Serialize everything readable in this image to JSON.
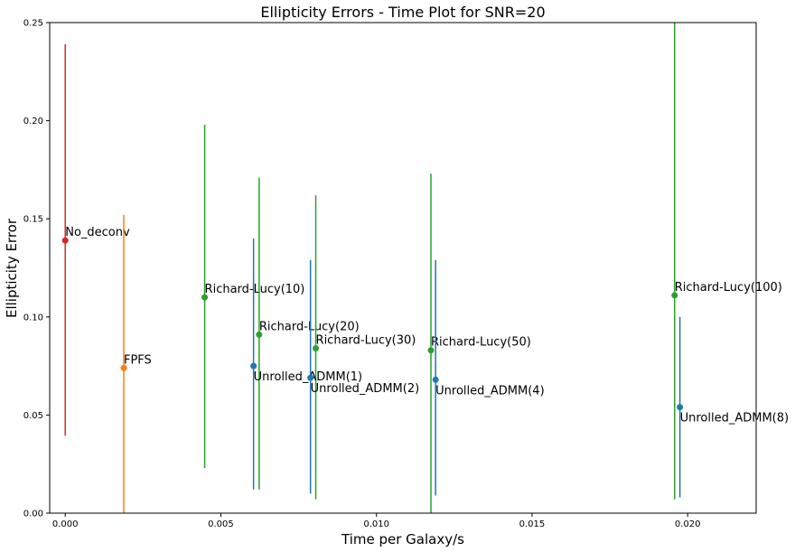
{
  "chart_data": {
    "type": "scatter",
    "title": "Ellipticity Errors - Time Plot for SNR=20",
    "xlabel": "Time per Galaxy/s",
    "ylabel": "Ellipticity Error",
    "xlim": [
      -0.0005,
      0.0222
    ],
    "ylim": [
      0.0,
      0.25
    ],
    "xticks": [
      "0.000",
      "0.005",
      "0.010",
      "0.015",
      "0.020"
    ],
    "yticks": [
      "0.00",
      "0.05",
      "0.10",
      "0.15",
      "0.20",
      "0.25"
    ],
    "grid": false,
    "points": [
      {
        "label": "No_deconv",
        "x": 0.0,
        "y": 0.139,
        "err_low": 0.0395,
        "err_high": 0.239,
        "color": "#d62728",
        "label_pos": "above-right"
      },
      {
        "label": "FPFS",
        "x": 0.00188,
        "y": 0.074,
        "err_low": 0.0,
        "err_high": 0.152,
        "color": "#ff7f0e",
        "label_pos": "above-right"
      },
      {
        "label": "Richard-Lucy(10)",
        "x": 0.00448,
        "y": 0.11,
        "err_low": 0.023,
        "err_high": 0.198,
        "color": "#2ca02c",
        "label_pos": "above-right"
      },
      {
        "label": "Richard-Lucy(20)",
        "x": 0.00623,
        "y": 0.091,
        "err_low": 0.012,
        "err_high": 0.171,
        "color": "#2ca02c",
        "label_pos": "above-right"
      },
      {
        "label": "Richard-Lucy(30)",
        "x": 0.00805,
        "y": 0.084,
        "err_low": 0.007,
        "err_high": 0.162,
        "color": "#2ca02c",
        "label_pos": "above-right"
      },
      {
        "label": "Richard-Lucy(50)",
        "x": 0.01175,
        "y": 0.083,
        "err_low": 0.0,
        "err_high": 0.173,
        "color": "#2ca02c",
        "label_pos": "above-right"
      },
      {
        "label": "Richard-Lucy(100)",
        "x": 0.01958,
        "y": 0.111,
        "err_low": 0.007,
        "err_high": 0.25,
        "color": "#2ca02c",
        "label_pos": "above-right"
      },
      {
        "label": "Unrolled_ADMM(1)",
        "x": 0.00605,
        "y": 0.075,
        "err_low": 0.012,
        "err_high": 0.14,
        "color": "#1f77b4",
        "label_pos": "below-right"
      },
      {
        "label": "Unrolled_ADMM(2)",
        "x": 0.00788,
        "y": 0.069,
        "err_low": 0.01,
        "err_high": 0.129,
        "color": "#1f77b4",
        "label_pos": "below-right"
      },
      {
        "label": "Unrolled_ADMM(4)",
        "x": 0.0119,
        "y": 0.068,
        "err_low": 0.009,
        "err_high": 0.129,
        "color": "#1f77b4",
        "label_pos": "below-right"
      },
      {
        "label": "Unrolled_ADMM(8)",
        "x": 0.01975,
        "y": 0.054,
        "err_low": 0.008,
        "err_high": 0.1,
        "color": "#1f77b4",
        "label_pos": "below-right"
      }
    ]
  }
}
